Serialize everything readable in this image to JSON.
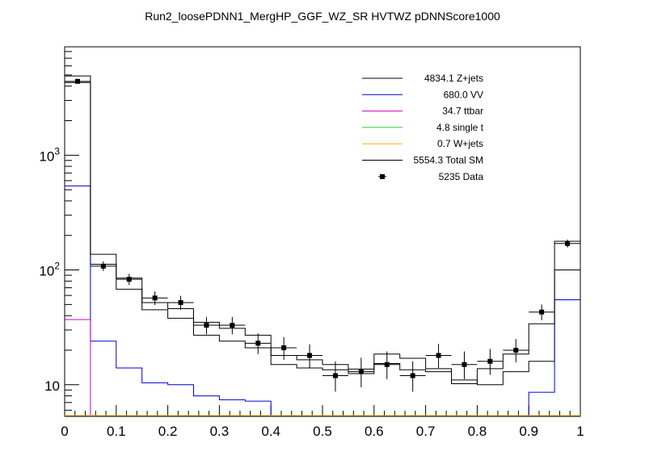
{
  "chart_data": {
    "type": "histogram",
    "title": "Run2_loosePDNN1_MergHP_GGF_WZ_SR HVTWZ  pDNNScore1000",
    "xlabel": "",
    "ylabel": "",
    "xlim": [
      0,
      1
    ],
    "ylim": [
      5.3,
      8800
    ],
    "y_scale": "log",
    "x_ticks": [
      "0",
      "0.1",
      "0.2",
      "0.3",
      "0.4",
      "0.5",
      "0.6",
      "0.7",
      "0.8",
      "0.9",
      "1"
    ],
    "y_ticks": [
      "10",
      "10^2",
      "10^3"
    ],
    "bin_edges": [
      0,
      0.05,
      0.1,
      0.15,
      0.2,
      0.25,
      0.3,
      0.35,
      0.4,
      0.45,
      0.5,
      0.55,
      0.6,
      0.65,
      0.7,
      0.75,
      0.8,
      0.85,
      0.9,
      0.95,
      1.0
    ],
    "series": [
      {
        "name": "Z+jets",
        "yield": "4834.1",
        "color": "#000000",
        "values": [
          4300,
          112,
          68,
          45,
          38,
          27,
          24,
          21,
          15,
          14,
          13.5,
          12.5,
          15.3,
          13.5,
          13,
          11,
          10,
          13,
          16,
          100
        ]
      },
      {
        "name": "VV",
        "yield": "680.0",
        "color": "#0000cc",
        "values": [
          540,
          24,
          14,
          10.4,
          10,
          8,
          7.4,
          7.2,
          null,
          null,
          null,
          null,
          null,
          null,
          null,
          null,
          null,
          null,
          8.6,
          55
        ]
      },
      {
        "name": "ttbar",
        "yield": "34.7",
        "color": "#cc00cc",
        "values": [
          37,
          null,
          null,
          null,
          null,
          null,
          null,
          null,
          null,
          null,
          null,
          null,
          null,
          null,
          null,
          null,
          null,
          null,
          null,
          null
        ]
      },
      {
        "name": "single t",
        "yield": "4.8",
        "color": "#33cc33",
        "values": [
          null,
          null,
          null,
          null,
          null,
          null,
          null,
          null,
          null,
          null,
          null,
          null,
          null,
          null,
          null,
          null,
          null,
          null,
          null,
          null
        ]
      },
      {
        "name": "W+jets",
        "yield": "0.7",
        "color": "#ffb000",
        "values": [
          null,
          null,
          null,
          null,
          null,
          null,
          null,
          null,
          null,
          null,
          null,
          null,
          null,
          null,
          null,
          null,
          null,
          null,
          null,
          null
        ]
      },
      {
        "name": "Total SM",
        "yield": "5554.3",
        "color": "#000000",
        "values": [
          4900,
          137,
          85,
          52,
          46,
          35,
          31,
          27,
          18,
          16.5,
          15,
          13.7,
          18.5,
          17,
          13.8,
          10.2,
          13.8,
          18.5,
          34,
          178
        ]
      }
    ],
    "data": {
      "name": "Data",
      "yield": "5235",
      "values": [
        4400,
        108,
        83,
        57,
        52,
        33,
        33,
        23,
        21,
        18,
        12,
        13,
        15,
        12,
        18,
        15,
        16,
        20,
        43,
        170
      ],
      "errors_low": [
        66,
        10,
        9,
        7.5,
        7,
        5.5,
        5.5,
        4.5,
        4.5,
        4,
        3.3,
        3.5,
        3.8,
        3.3,
        4,
        3.8,
        3.8,
        4.3,
        6.5,
        13
      ],
      "errors_high": [
        66,
        11,
        9.5,
        8,
        7.5,
        6,
        6,
        5,
        5,
        4.5,
        4,
        4.2,
        4.5,
        4,
        4.7,
        4.5,
        4.5,
        5,
        7,
        14
      ]
    },
    "legend": {
      "position": "top-right",
      "entries": [
        {
          "label": "4834.1 Z+jets",
          "color": "#000000",
          "marker": "line"
        },
        {
          "label": "680.0 VV",
          "color": "#0000cc",
          "marker": "line"
        },
        {
          "label": "34.7 ttbar",
          "color": "#cc00cc",
          "marker": "line"
        },
        {
          "label": "4.8 single t",
          "color": "#33cc33",
          "marker": "line"
        },
        {
          "label": "0.7 W+jets",
          "color": "#ffb000",
          "marker": "line"
        },
        {
          "label": "5554.3 Total SM",
          "color": "#000000",
          "marker": "line"
        },
        {
          "label": "5235 Data",
          "color": "#000000",
          "marker": "point"
        }
      ]
    },
    "grid": false
  }
}
